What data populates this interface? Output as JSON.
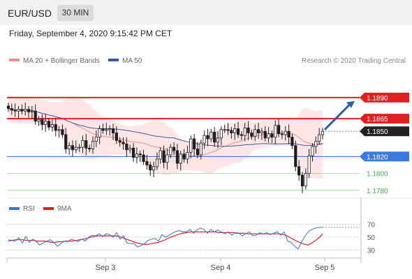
{
  "header": {
    "symbol": "EUR/USD",
    "timeframe": "30 MIN",
    "datetime": "Friday, September 4, 2020 9:15:42 PM CET"
  },
  "colors": {
    "ma20": "#f28b8b",
    "ma50": "#3a5aa0",
    "band_fill": "#fde0de",
    "resistance": "#e02020",
    "support": "#3a7ae0",
    "target": "#3bb04b",
    "arrow": "#2a5fa8",
    "rsi": "#3a6fd8",
    "rsi_ma": "#e02020",
    "up_candle": "#ffffff",
    "down_candle": "#1e1e1e",
    "last_price_bg": "#222222"
  },
  "chart_data": [
    {
      "type": "candlestick",
      "title": "",
      "legend": [
        {
          "label": "MA 20 + Bollinger Bands",
          "color": "#f28b8b"
        },
        {
          "label": "MA 50",
          "color": "#3a5aa0"
        }
      ],
      "legend_position": "top-left",
      "credit": "Research © 2020 Trading Central",
      "x_tick_labels": [
        "Sep 3",
        "Sep 4",
        "Sep 5"
      ],
      "ylim": [
        1.1774,
        1.1923
      ],
      "levels": [
        {
          "label": "1.1890",
          "value": 1.189,
          "kind": "resistance"
        },
        {
          "label": "1.1865",
          "value": 1.1865,
          "kind": "resistance"
        },
        {
          "label": "1.1850",
          "value": 1.185,
          "kind": "last_price"
        },
        {
          "label": "1.1820",
          "value": 1.182,
          "kind": "pivot"
        },
        {
          "label": "1.1800",
          "value": 1.18,
          "kind": "target"
        },
        {
          "label": "1.1780",
          "value": 1.178,
          "kind": "target"
        }
      ],
      "close_path": [
        1.1877,
        1.1875,
        1.1874,
        1.1876,
        1.1874,
        1.1876,
        1.1873,
        1.1874,
        1.1862,
        1.1864,
        1.1858,
        1.1862,
        1.1855,
        1.1858,
        1.1851,
        1.1852,
        1.1846,
        1.1829,
        1.1833,
        1.1828,
        1.1831,
        1.1831,
        1.1839,
        1.183,
        1.1829,
        1.1838,
        1.1843,
        1.1853,
        1.1851,
        1.1852,
        1.1853,
        1.1848,
        1.1839,
        1.1837,
        1.1835,
        1.1828,
        1.183,
        1.1819,
        1.1823,
        1.1822,
        1.1814,
        1.181,
        1.1804,
        1.1808,
        1.1817,
        1.1827,
        1.1813,
        1.1822,
        1.1831,
        1.1827,
        1.1812,
        1.1823,
        1.1817,
        1.1825,
        1.1841,
        1.1829,
        1.1822,
        1.1836,
        1.1845,
        1.1841,
        1.1849,
        1.1837,
        1.1842,
        1.1852,
        1.1852,
        1.1851,
        1.1848,
        1.1853,
        1.1846,
        1.1845,
        1.1854,
        1.1848,
        1.1844,
        1.1852,
        1.1848,
        1.185,
        1.1842,
        1.1847,
        1.1843,
        1.1857,
        1.1847,
        1.1846,
        1.185,
        1.1843,
        1.1833,
        1.1808,
        1.1798,
        1.1785,
        1.18,
        1.1821,
        1.1832,
        1.1838,
        1.1846,
        1.185
      ],
      "forecast_arrow": {
        "from": 1.1852,
        "to": 1.1886
      }
    },
    {
      "type": "line",
      "title": "",
      "legend": [
        {
          "label": "RSI",
          "color": "#3a6fd8"
        },
        {
          "label": "9MA",
          "color": "#e02020"
        }
      ],
      "legend_position": "top-left",
      "ylim": [
        20,
        80
      ],
      "y_tick_labels": [
        "70",
        "50",
        "30"
      ],
      "series": [
        {
          "name": "RSI",
          "values": [
            46,
            45,
            44,
            49,
            41,
            51,
            42,
            47,
            43,
            38,
            41,
            44,
            46,
            42,
            36,
            40,
            44,
            43,
            47,
            45,
            43,
            47,
            44,
            50,
            53,
            52,
            55,
            51,
            55,
            54,
            50,
            57,
            47,
            52,
            41,
            40,
            40,
            35,
            37,
            40,
            45,
            47,
            48,
            44,
            54,
            50,
            53,
            56,
            59,
            60,
            58,
            58,
            62,
            56,
            61,
            64,
            62,
            56,
            62,
            58,
            61,
            58,
            55,
            58,
            53,
            57,
            56,
            52,
            55,
            58,
            52,
            53,
            57,
            55,
            57,
            54,
            56,
            58,
            53,
            58,
            44,
            42,
            36,
            32,
            43,
            52,
            59,
            62,
            64,
            65,
            65
          ]
        },
        {
          "name": "9MA",
          "values": [
            44,
            45,
            46,
            46,
            46,
            45,
            45,
            45,
            44,
            44,
            44,
            43,
            42,
            42,
            43,
            43,
            44,
            44,
            44,
            45,
            46,
            47,
            48,
            50,
            51,
            52,
            52,
            52,
            52,
            52,
            52,
            51,
            49,
            47,
            45,
            43,
            41,
            40,
            39,
            39,
            40,
            41,
            42,
            44,
            46,
            49,
            51,
            53,
            55,
            56,
            57,
            58,
            58,
            58,
            58,
            58,
            58,
            58,
            58,
            57,
            57,
            57,
            57,
            57,
            56,
            56,
            56,
            55,
            55,
            55,
            55,
            55,
            55,
            55,
            55,
            55,
            55,
            54,
            52,
            49,
            46,
            43,
            41,
            39,
            38,
            41,
            45,
            49,
            55
          ]
        }
      ]
    }
  ]
}
